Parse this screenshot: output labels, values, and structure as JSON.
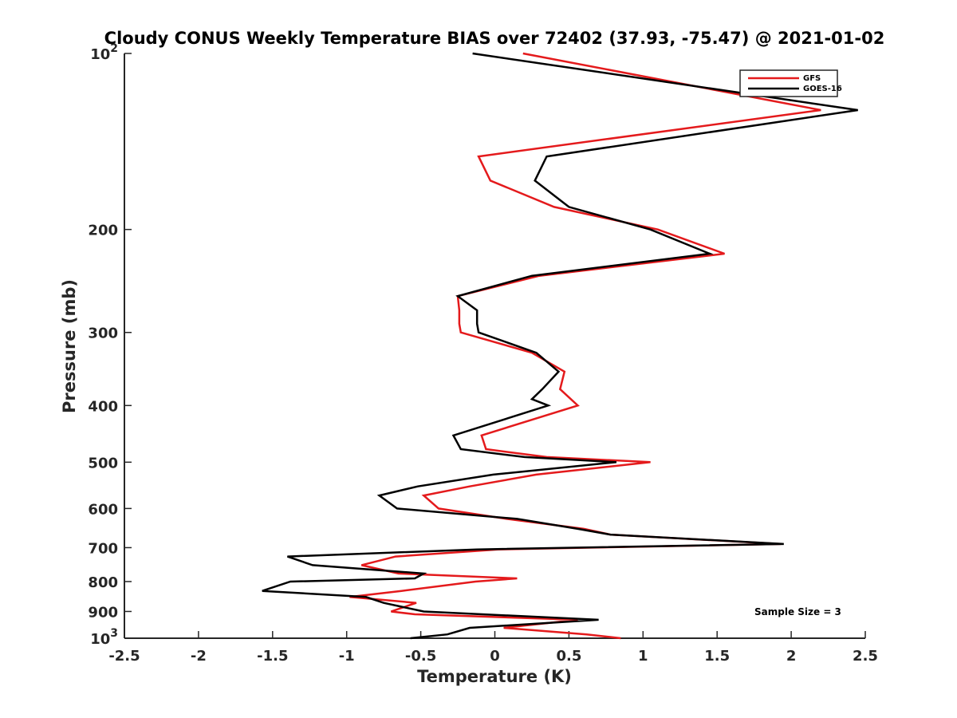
{
  "chart_data": {
    "type": "line",
    "title": "Cloudy CONUS Weekly Temperature BIAS over 72402 (37.93, -75.47) @ 2021-01-02",
    "xlabel": "Temperature (K)",
    "ylabel": "Pressure (mb)",
    "xlim": [
      -2.5,
      2.5
    ],
    "ylim": [
      100,
      1000
    ],
    "yscale": "log",
    "y_reversed": true,
    "grid": false,
    "legend_position": "top-right",
    "x_ticks": [
      "-2.5",
      "-2",
      "-1.5",
      "-1",
      "-0.5",
      "0",
      "0.5",
      "1",
      "1.5",
      "2",
      "2.5"
    ],
    "y_ticks": [
      {
        "value": 100,
        "base": "10",
        "exp": "2"
      },
      {
        "value": 200,
        "label": "200"
      },
      {
        "value": 300,
        "label": "300"
      },
      {
        "value": 400,
        "label": "400"
      },
      {
        "value": 500,
        "label": "500"
      },
      {
        "value": 600,
        "label": "600"
      },
      {
        "value": 700,
        "label": "700"
      },
      {
        "value": 800,
        "label": "800"
      },
      {
        "value": 900,
        "label": "900"
      },
      {
        "value": 1000,
        "base": "10",
        "exp": "3"
      }
    ],
    "series": [
      {
        "name": "GFS",
        "color": "#e41a1c",
        "points": [
          [
            0.19,
            100
          ],
          [
            2.2,
            125
          ],
          [
            -0.11,
            150
          ],
          [
            -0.03,
            165
          ],
          [
            0.4,
            183
          ],
          [
            1.1,
            200
          ],
          [
            1.55,
            220
          ],
          [
            0.3,
            240
          ],
          [
            -0.25,
            260
          ],
          [
            -0.24,
            275
          ],
          [
            -0.24,
            290
          ],
          [
            -0.23,
            300
          ],
          [
            0.25,
            325
          ],
          [
            0.47,
            350
          ],
          [
            0.44,
            375
          ],
          [
            0.56,
            400
          ],
          [
            -0.09,
            450
          ],
          [
            -0.06,
            475
          ],
          [
            0.35,
            490
          ],
          [
            1.05,
            500
          ],
          [
            0.28,
            525
          ],
          [
            -0.17,
            550
          ],
          [
            -0.48,
            570
          ],
          [
            -0.38,
            600
          ],
          [
            0.08,
            625
          ],
          [
            0.6,
            650
          ],
          [
            0.78,
            665
          ],
          [
            1.93,
            690
          ],
          [
            0.02,
            705
          ],
          [
            -0.67,
            725
          ],
          [
            -0.9,
            750
          ],
          [
            -0.65,
            775
          ],
          [
            0.15,
            790
          ],
          [
            -0.13,
            800
          ],
          [
            -0.63,
            830
          ],
          [
            -0.98,
            850
          ],
          [
            -0.53,
            870
          ],
          [
            -0.7,
            900
          ],
          [
            -0.54,
            910
          ],
          [
            0.56,
            930
          ],
          [
            0.06,
            960
          ],
          [
            0.62,
            985
          ],
          [
            0.85,
            1000
          ]
        ]
      },
      {
        "name": "GOES-16",
        "color": "#000000",
        "points": [
          [
            -0.15,
            100
          ],
          [
            2.45,
            125
          ],
          [
            0.35,
            150
          ],
          [
            0.27,
            165
          ],
          [
            0.5,
            183
          ],
          [
            1.05,
            200
          ],
          [
            1.45,
            220
          ],
          [
            0.25,
            240
          ],
          [
            -0.25,
            260
          ],
          [
            -0.12,
            275
          ],
          [
            -0.12,
            290
          ],
          [
            -0.11,
            300
          ],
          [
            0.28,
            325
          ],
          [
            0.43,
            350
          ],
          [
            0.32,
            375
          ],
          [
            0.25,
            390
          ],
          [
            0.36,
            400
          ],
          [
            -0.28,
            450
          ],
          [
            -0.23,
            475
          ],
          [
            0.2,
            490
          ],
          [
            0.82,
            500
          ],
          [
            -0.01,
            525
          ],
          [
            -0.52,
            550
          ],
          [
            -0.78,
            570
          ],
          [
            -0.66,
            600
          ],
          [
            0.15,
            625
          ],
          [
            0.56,
            650
          ],
          [
            0.78,
            665
          ],
          [
            1.95,
            690
          ],
          [
            -0.12,
            705
          ],
          [
            -1.4,
            725
          ],
          [
            -1.23,
            750
          ],
          [
            -0.48,
            775
          ],
          [
            -0.54,
            790
          ],
          [
            -1.38,
            800
          ],
          [
            -1.57,
            830
          ],
          [
            -0.87,
            850
          ],
          [
            -0.75,
            870
          ],
          [
            -0.48,
            900
          ],
          [
            0.7,
            930
          ],
          [
            -0.17,
            960
          ],
          [
            -0.32,
            985
          ],
          [
            -0.57,
            1000
          ]
        ]
      }
    ],
    "annotations": [
      {
        "text": "Sample Size = 3"
      }
    ]
  }
}
